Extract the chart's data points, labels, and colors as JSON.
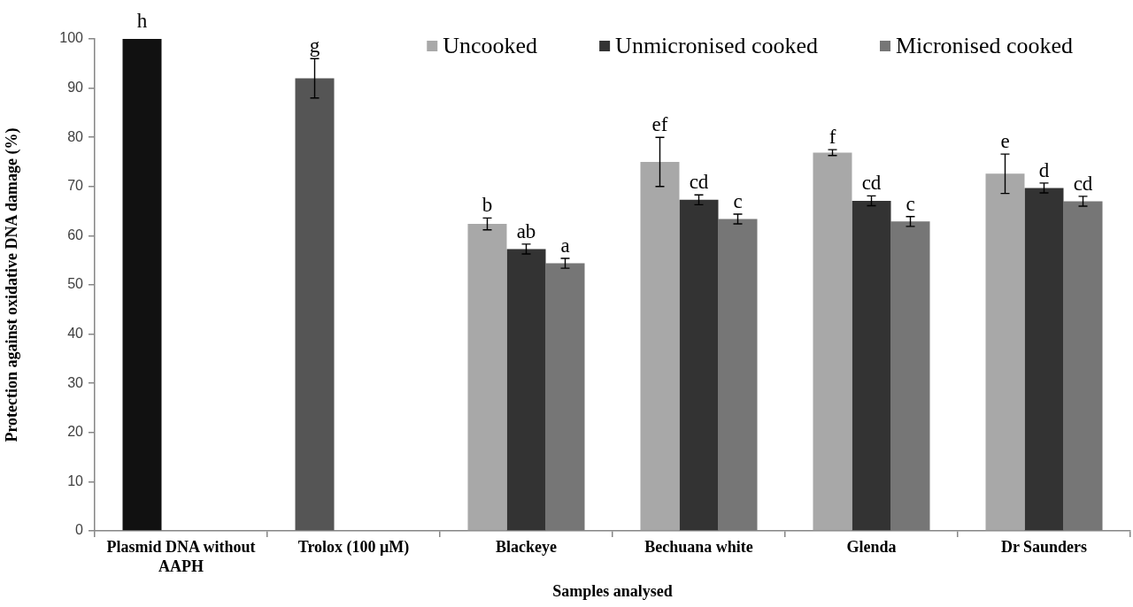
{
  "chart_data": {
    "type": "bar",
    "xlabel": "Samples analysed",
    "ylabel": "Protection against oxidative DNA damage (%)",
    "categories": [
      "Plasmid DNA without AAPH",
      "Trolox (100 μM)",
      "Blackeye",
      "Bechuana white",
      "Glenda",
      "Dr Saunders"
    ],
    "series": [
      {
        "color": "#111111",
        "values": [
          100,
          null,
          null,
          null,
          null,
          null
        ],
        "value_labels": [
          "h",
          null,
          null,
          null,
          null,
          null
        ]
      },
      {
        "color": "#555555",
        "values": [
          null,
          92,
          null,
          null,
          null,
          null
        ],
        "errors": [
          null,
          4,
          null,
          null,
          null,
          null
        ],
        "value_labels": [
          null,
          "g",
          null,
          null,
          null,
          null
        ]
      },
      {
        "name": "Uncooked",
        "color": "#a8a8a8",
        "values": [
          null,
          null,
          62.4,
          75,
          76.9,
          72.6
        ],
        "errors": [
          null,
          null,
          1.2,
          5,
          0.6,
          4
        ],
        "value_labels": [
          null,
          null,
          "b",
          "ef",
          "f",
          "e"
        ]
      },
      {
        "name": "Unmicronised cooked",
        "color": "#333333",
        "values": [
          null,
          null,
          57.3,
          67.3,
          67.1,
          69.7
        ],
        "errors": [
          null,
          null,
          1,
          1,
          1,
          1
        ],
        "value_labels": [
          null,
          null,
          "ab",
          "cd",
          "cd",
          "d"
        ]
      },
      {
        "name": "Micronised cooked",
        "color": "#767676",
        "values": [
          null,
          null,
          54.4,
          63.4,
          62.9,
          67.0
        ],
        "errors": [
          null,
          null,
          1,
          1,
          1,
          1
        ],
        "value_labels": [
          null,
          null,
          "a",
          "c",
          "c",
          "cd"
        ]
      }
    ],
    "ylim": [
      0,
      100
    ],
    "yticks": [
      0,
      10,
      20,
      30,
      40,
      50,
      60,
      70,
      80,
      90,
      100
    ],
    "legend": "top right",
    "grid": false
  }
}
